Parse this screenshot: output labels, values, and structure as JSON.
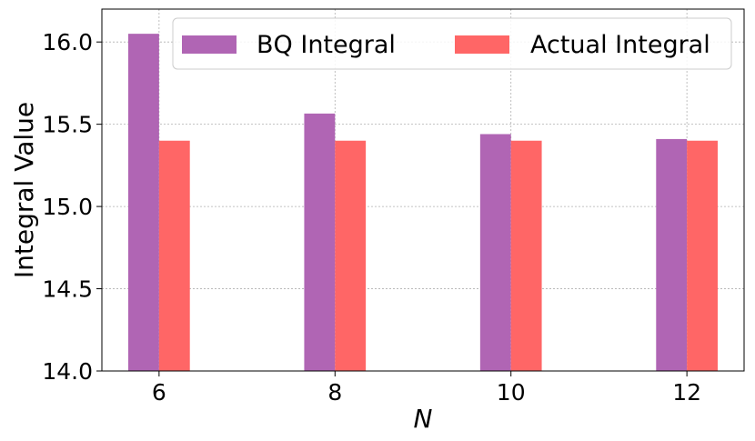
{
  "chart_data": {
    "type": "bar",
    "categories": [
      "6",
      "8",
      "10",
      "12"
    ],
    "x": [
      6,
      8,
      10,
      12
    ],
    "series": [
      {
        "name": "BQ Integral",
        "values": [
          16.05,
          15.565,
          15.44,
          15.41
        ],
        "color": "#B065B4"
      },
      {
        "name": "Actual Integral",
        "values": [
          15.4,
          15.4,
          15.4,
          15.4
        ],
        "color": "#FF6666"
      }
    ],
    "title": "",
    "xlabel": "N",
    "ylabel": "Integral Value",
    "xlim": [
      5.35,
      12.65
    ],
    "ylim": [
      14.0,
      16.2
    ],
    "yticks": [
      14.0,
      14.5,
      15.0,
      15.5,
      16.0
    ],
    "ytick_labels": [
      "14.0",
      "14.5",
      "15.0",
      "15.5",
      "16.0"
    ],
    "xticks": [
      6,
      8,
      10,
      12
    ],
    "xtick_labels": [
      "6",
      "8",
      "10",
      "12"
    ],
    "bar_width_units": 0.35,
    "grid": true,
    "legend": {
      "placement": "top-right",
      "columns": 2
    }
  }
}
